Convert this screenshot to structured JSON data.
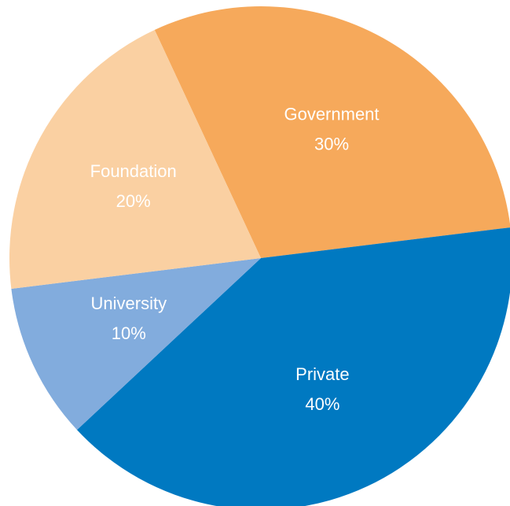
{
  "chart_data": {
    "type": "pie",
    "title": "",
    "start_angle_deg": 335,
    "slices": [
      {
        "label": "Government",
        "value": 30,
        "value_label": "30%",
        "color": "#F6A95B",
        "text_color": "#ffffff"
      },
      {
        "label": "Private",
        "value": 40,
        "value_label": "40%",
        "color": "#0079C1",
        "text_color": "#ffffff"
      },
      {
        "label": "University",
        "value": 10,
        "value_label": "10%",
        "color": "#82ACDD",
        "text_color": "#ffffff"
      },
      {
        "label": "Foundation",
        "value": 20,
        "value_label": "20%",
        "color": "#FAD0A2",
        "text_color": "#ffffff"
      }
    ],
    "legend": "none",
    "labels_inside_slices": true
  }
}
